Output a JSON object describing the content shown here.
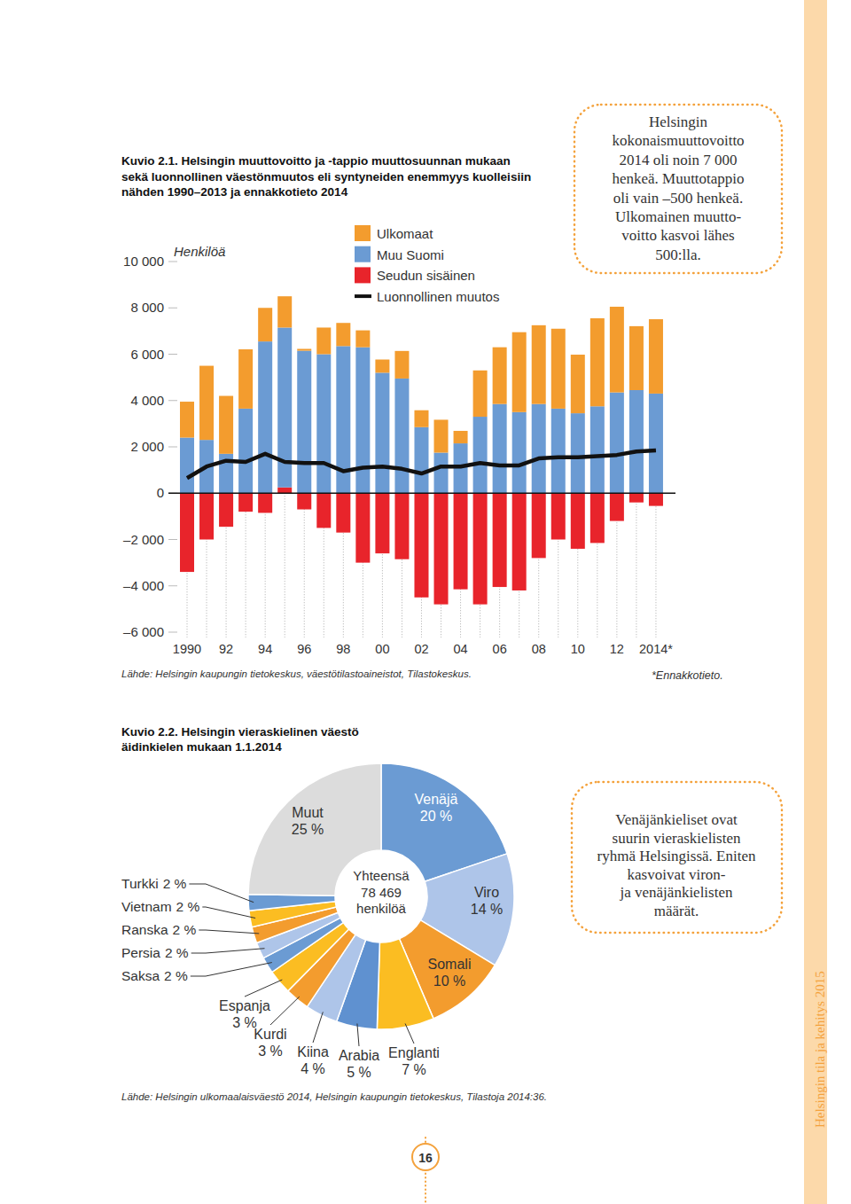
{
  "chart_data": [
    {
      "type": "bar",
      "title": [
        "Kuvio 2.1. Helsingin muuttovoitto ja -tappio muuttosuunnan mukaan",
        "sekä luonnollinen väestönmuutos eli syntyneiden enemmyys kuolleisiin",
        "nähden 1990–2013 ja ennakkotieto 2014"
      ],
      "y_label": "Henkilöä",
      "categories": [
        "1990",
        null,
        "92",
        null,
        "94",
        null,
        "96",
        null,
        "98",
        null,
        "00",
        null,
        "02",
        null,
        "04",
        null,
        "06",
        null,
        "08",
        null,
        "10",
        null,
        "12",
        null,
        "2014*"
      ],
      "series": [
        {
          "name": "Ulkomaat",
          "type": "bar",
          "color": "#f39c2e",
          "values": [
            1550,
            3200,
            2500,
            2560,
            1450,
            1350,
            80,
            1150,
            1000,
            730,
            570,
            1190,
            730,
            1420,
            540,
            2000,
            2450,
            3450,
            3400,
            3450,
            2530,
            3800,
            3700,
            2760,
            3210
          ]
        },
        {
          "name": "Muu Suomi",
          "type": "bar",
          "color": "#6b9bd3",
          "values": [
            2400,
            2300,
            1700,
            3650,
            6550,
            6900,
            6150,
            6000,
            6350,
            6300,
            5200,
            4950,
            2850,
            1750,
            2150,
            3300,
            3850,
            3500,
            3850,
            3650,
            3450,
            3750,
            4350,
            4450,
            4300
          ]
        },
        {
          "name": "Seudun sisäinen",
          "type": "bar",
          "color": "#e8242b",
          "values": [
            -3400,
            -2000,
            -1450,
            -800,
            -850,
            250,
            -700,
            -1500,
            -1700,
            -3000,
            -2600,
            -2850,
            -4500,
            -4800,
            -4150,
            -4800,
            -4050,
            -4200,
            -2800,
            -2000,
            -2400,
            -2150,
            -1200,
            -400,
            -550
          ]
        },
        {
          "name": "Luonnollinen muutos",
          "type": "line",
          "color": "#111111",
          "line_style": "solid",
          "values": [
            650,
            1150,
            1400,
            1350,
            1700,
            1350,
            1300,
            1300,
            950,
            1100,
            1150,
            1050,
            850,
            1150,
            1150,
            1300,
            1200,
            1200,
            1500,
            1550,
            1550,
            1600,
            1650,
            1800,
            1850
          ]
        }
      ],
      "stacked": true,
      "grid": false,
      "legend": "top",
      "ylim": [
        -6000,
        10000
      ],
      "yticks": [
        {
          "value": -6000,
          "label": "–6 000"
        },
        {
          "value": -4000,
          "label": "–4 000"
        },
        {
          "value": -2000,
          "label": "–2 000"
        },
        0,
        {
          "value": 2000,
          "label": "2 000"
        },
        {
          "value": 4000,
          "label": "4 000"
        },
        {
          "value": 6000,
          "label": "6 000"
        },
        {
          "value": 8000,
          "label": "8 000"
        },
        {
          "value": 10000,
          "label": "10 000"
        }
      ],
      "annotations": [
        "Helsingin",
        "kokonaismuuttovoitto",
        "2014 oli noin 7 000",
        "henkeä. Muuttotappio",
        "oli vain –500 henkeä.",
        "Ulkomainen muutto-",
        "voitto kasvoi lähes",
        "500:lla."
      ],
      "source": "Lähde: Helsingin kaupungin tietokeskus, väestötilastoaineistot, Tilastokeskus.",
      "footnote": "*Ennakkotieto."
    },
    {
      "type": "pie",
      "title": [
        "Kuvio 2.2. Helsingin vieraskielinen väestö",
        "äidinkielen mukaan 1.1.2014"
      ],
      "categories": [
        "Venäjä",
        "Viro",
        "Somali",
        "Englanti",
        "Arabia",
        "Kiina",
        "Kurdi",
        "Espanja",
        "Saksa",
        "Persia",
        "Ranska",
        "Vietnam",
        "Turkki",
        "Muut"
      ],
      "values": [
        20,
        14,
        10,
        7,
        5,
        4,
        3,
        3,
        2,
        2,
        2,
        2,
        2,
        25
      ],
      "value_labels": [
        "20 %",
        "14 %",
        "10 %",
        "7 %",
        "5 %",
        "4 %",
        "3 %",
        "3 %",
        "2 %",
        "2 %",
        "2 %",
        "2 %",
        "2 %",
        "25 %"
      ],
      "colors": [
        "#6b9bd3",
        "#aec5e9",
        "#f39c2e",
        "#fbbd22",
        "#5f91d0",
        "#aec5e9",
        "#f39c2e",
        "#fbbd22",
        "#6b9bd3",
        "#aec5e9",
        "#f39c2e",
        "#fbbd22",
        "#6b9bd3",
        "#dcdcdc"
      ],
      "data_labels": true,
      "center_label": [
        "Yhteensä",
        "78 469",
        "henkilöä"
      ],
      "annotations": [
        "Venäjänkieliset ovat",
        "suurin vieraskielisten",
        "ryhmä Helsingissä. Eniten",
        "kasvoivat viron-",
        "ja venäjänkielisten",
        "määrät."
      ],
      "source": "Lähde: Helsingin ulkomaalaisväestö 2014, Helsingin kaupungin tietokeskus, Tilastoja 2014:36."
    }
  ],
  "page": {
    "side_text": "Helsingin tila ja kehitys 2015",
    "page_number": "16"
  }
}
